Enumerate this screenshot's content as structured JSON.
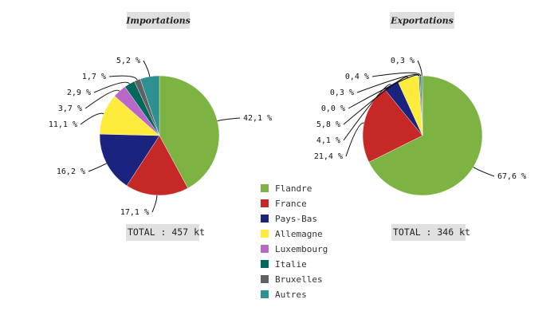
{
  "chart_data": [
    {
      "type": "pie",
      "title": "Importations",
      "total_label": "TOTAL : 457 kt",
      "categories": [
        "Flandre",
        "France",
        "Pays-Bas",
        "Allemagne",
        "Luxembourg",
        "Italie",
        "Bruxelles",
        "Autres"
      ],
      "values": [
        42.1,
        17.1,
        16.2,
        11.1,
        3.7,
        2.9,
        1.7,
        5.2
      ],
      "value_labels": [
        "42,1 %",
        "17,1 %",
        "16,2 %",
        "11,1 %",
        "3,7 %",
        "2,9 %",
        "1,7 %",
        "5,2 %"
      ],
      "unit": "%"
    },
    {
      "type": "pie",
      "title": "Exportations",
      "total_label": "TOTAL : 346 kt",
      "categories": [
        "Flandre",
        "France",
        "Pays-Bas",
        "Allemagne",
        "Luxembourg",
        "Italie",
        "Bruxelles",
        "Autres"
      ],
      "values": [
        67.6,
        21.4,
        4.1,
        5.8,
        0.0,
        0.3,
        0.4,
        0.3
      ],
      "value_labels": [
        "67,6 %",
        "21,4 %",
        "4,1 %",
        "5,8 %",
        "0,0 %",
        "0,3 %",
        "0,4 %",
        "0,3 %"
      ],
      "unit": "%"
    }
  ],
  "legend": {
    "position": "center-bottom",
    "items": [
      {
        "label": "Flandre",
        "color": "#7cb342"
      },
      {
        "label": "France",
        "color": "#c62828"
      },
      {
        "label": "Pays-Bas",
        "color": "#1a237e"
      },
      {
        "label": "Allemagne",
        "color": "#ffeb3b"
      },
      {
        "label": "Luxembourg",
        "color": "#ba68c8"
      },
      {
        "label": "Italie",
        "color": "#00695c"
      },
      {
        "label": "Bruxelles",
        "color": "#616161"
      },
      {
        "label": "Autres",
        "color": "#2e9090"
      }
    ]
  }
}
